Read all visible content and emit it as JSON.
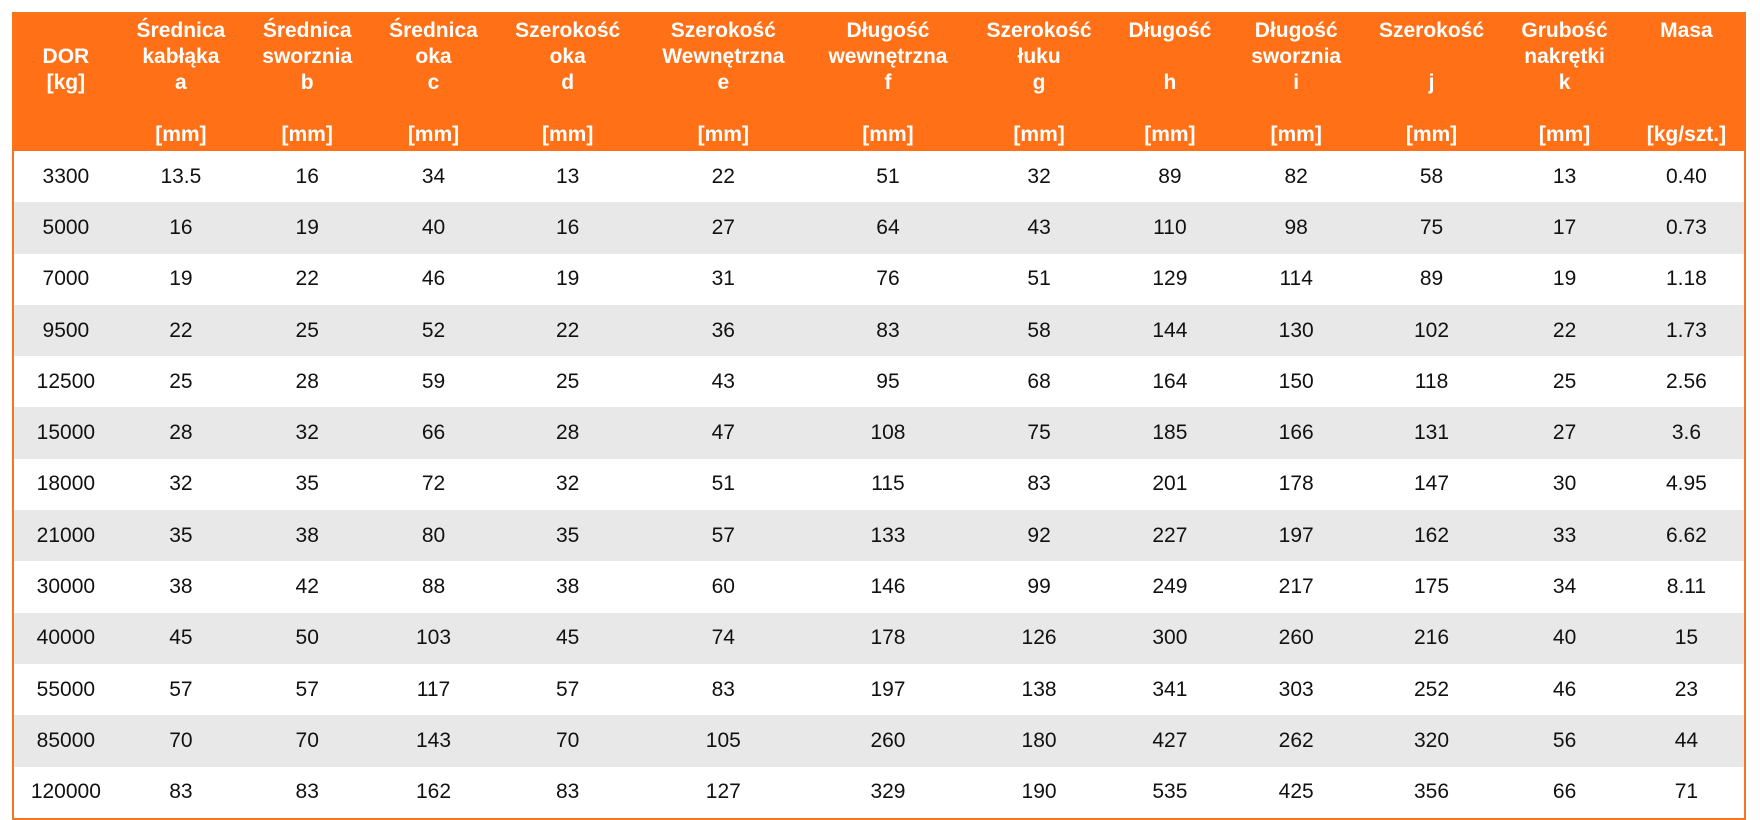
{
  "table": {
    "headers": [
      {
        "l1": "",
        "l2": "DOR",
        "l3": "[kg]",
        "l4": "",
        "l5": ""
      },
      {
        "l1": "Średnica",
        "l2": "kabłąka",
        "l3": "a",
        "l4": "",
        "l5": "[mm]"
      },
      {
        "l1": "Średnica",
        "l2": "sworznia",
        "l3": "b",
        "l4": "",
        "l5": "[mm]"
      },
      {
        "l1": "Średnica",
        "l2": "oka",
        "l3": "c",
        "l4": "",
        "l5": "[mm]"
      },
      {
        "l1": "Szerokość",
        "l2": "oka",
        "l3": "d",
        "l4": "",
        "l5": "[mm]"
      },
      {
        "l1": "Szerokość",
        "l2": "Wewnętrzna",
        "l3": "e",
        "l4": "",
        "l5": "[mm]"
      },
      {
        "l1": "Długość",
        "l2": "wewnętrzna",
        "l3": "f",
        "l4": "",
        "l5": "[mm]"
      },
      {
        "l1": "Szerokość",
        "l2": "łuku",
        "l3": "g",
        "l4": "",
        "l5": "[mm]"
      },
      {
        "l1": "Długość",
        "l2": "",
        "l3": "h",
        "l4": "",
        "l5": "[mm]"
      },
      {
        "l1": "Długość",
        "l2": "sworznia",
        "l3": "i",
        "l4": "",
        "l5": "[mm]"
      },
      {
        "l1": "Szerokość",
        "l2": "",
        "l3": "j",
        "l4": "",
        "l5": "[mm]"
      },
      {
        "l1": "Grubość",
        "l2": "nakrętki",
        "l3": "k",
        "l4": "",
        "l5": "[mm]"
      },
      {
        "l1": "Masa",
        "l2": "",
        "l3": "",
        "l4": "",
        "l5": "[kg/szt.]"
      }
    ],
    "rows": [
      [
        "3300",
        "13.5",
        "16",
        "34",
        "13",
        "22",
        "51",
        "32",
        "89",
        "82",
        "58",
        "13",
        "0.40"
      ],
      [
        "5000",
        "16",
        "19",
        "40",
        "16",
        "27",
        "64",
        "43",
        "110",
        "98",
        "75",
        "17",
        "0.73"
      ],
      [
        "7000",
        "19",
        "22",
        "46",
        "19",
        "31",
        "76",
        "51",
        "129",
        "114",
        "89",
        "19",
        "1.18"
      ],
      [
        "9500",
        "22",
        "25",
        "52",
        "22",
        "36",
        "83",
        "58",
        "144",
        "130",
        "102",
        "22",
        "1.73"
      ],
      [
        "12500",
        "25",
        "28",
        "59",
        "25",
        "43",
        "95",
        "68",
        "164",
        "150",
        "118",
        "25",
        "2.56"
      ],
      [
        "15000",
        "28",
        "32",
        "66",
        "28",
        "47",
        "108",
        "75",
        "185",
        "166",
        "131",
        "27",
        "3.6"
      ],
      [
        "18000",
        "32",
        "35",
        "72",
        "32",
        "51",
        "115",
        "83",
        "201",
        "178",
        "147",
        "30",
        "4.95"
      ],
      [
        "21000",
        "35",
        "38",
        "80",
        "35",
        "57",
        "133",
        "92",
        "227",
        "197",
        "162",
        "33",
        "6.62"
      ],
      [
        "30000",
        "38",
        "42",
        "88",
        "38",
        "60",
        "146",
        "99",
        "249",
        "217",
        "175",
        "34",
        "8.11"
      ],
      [
        "40000",
        "45",
        "50",
        "103",
        "45",
        "74",
        "178",
        "126",
        "300",
        "260",
        "216",
        "40",
        "15"
      ],
      [
        "55000",
        "57",
        "57",
        "117",
        "57",
        "83",
        "197",
        "138",
        "341",
        "303",
        "252",
        "46",
        "23"
      ],
      [
        "85000",
        "70",
        "70",
        "143",
        "70",
        "105",
        "260",
        "180",
        "427",
        "262",
        "320",
        "56",
        "44"
      ],
      [
        "120000",
        "83",
        "83",
        "162",
        "83",
        "127",
        "329",
        "190",
        "535",
        "425",
        "356",
        "66",
        "71"
      ]
    ]
  },
  "colors": {
    "header_bg": "#ff7017",
    "header_text": "#ffffff",
    "row_stripe": "#e8e8e8",
    "border": "#f47720"
  }
}
